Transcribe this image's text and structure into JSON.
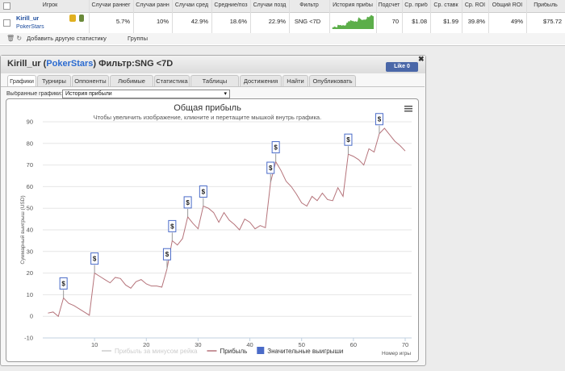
{
  "top_table": {
    "player_header": "Игрок",
    "player": "Kirill_ur",
    "site": "PokerStars",
    "columns": [
      {
        "header": "Случаи раннег",
        "value": "5.7%"
      },
      {
        "header": "Случаи ранн",
        "value": "10%"
      },
      {
        "header": "Случаи сред",
        "value": "42.9%"
      },
      {
        "header": "Средние/поз",
        "value": "18.6%"
      },
      {
        "header": "Случаи позд",
        "value": "22.9%"
      },
      {
        "header": "Фильтр",
        "value": "SNG <7D"
      },
      {
        "header": "История прибы"
      },
      {
        "header": "Подсчет",
        "value": "70"
      },
      {
        "header": "Ср. приб",
        "value": "$1.08"
      },
      {
        "header": "Ср. ставк",
        "value": "$1.99"
      },
      {
        "header": "Ср. ROI",
        "value": "39.8%"
      },
      {
        "header": "Общий ROI",
        "value": "49%"
      },
      {
        "header": "Прибыль",
        "value": "$75.72"
      }
    ],
    "add_stat": "Добавить другую статистику",
    "groups": "Группы"
  },
  "panel": {
    "title_before": "Kirill_ur (",
    "title_link": "PokerStars",
    "title_after": ") Фильтр:SNG <7D",
    "like": "Like 0",
    "tabs": [
      "Графики",
      "Турниры",
      "Оппоненты",
      "Любимые игры",
      "Статистика",
      "Таблицы лидеров",
      "Достижения",
      "Найти",
      "Опубликовать"
    ],
    "active_tab": 0,
    "selector_label": "Выбранные графики:",
    "selector_value": "История прибыли"
  },
  "chart_data": {
    "type": "line",
    "title": "Общая прибыль",
    "subtitle": "Чтобы увеличить изображение, кликните и перетащите мышкой внутрь графика.",
    "y_label": "Суммарный выигрыш (USD)",
    "x_label": "Номер игры",
    "x": [
      1,
      2,
      3,
      4,
      5,
      6,
      7,
      8,
      9,
      10,
      11,
      12,
      13,
      14,
      15,
      16,
      17,
      18,
      19,
      20,
      21,
      22,
      23,
      24,
      25,
      26,
      27,
      28,
      29,
      30,
      31,
      32,
      33,
      34,
      35,
      36,
      37,
      38,
      39,
      40,
      41,
      42,
      43,
      44,
      45,
      46,
      47,
      48,
      49,
      50,
      51,
      52,
      53,
      54,
      55,
      56,
      57,
      58,
      59,
      60,
      61,
      62,
      63,
      64,
      65,
      66,
      67,
      68,
      69,
      70
    ],
    "series": [
      {
        "name": "Прибыль за минусом рейка",
        "color": "#cccccc",
        "visible": false
      },
      {
        "name": "Прибыль",
        "color": "#b5737a",
        "visible": true,
        "values": [
          1.5,
          2,
          0,
          8.5,
          6,
          5,
          3.5,
          2,
          0.5,
          20,
          18.5,
          17,
          15.5,
          18,
          17.5,
          14.5,
          13,
          16,
          17,
          15,
          14,
          14,
          13.5,
          22,
          35,
          33,
          36,
          46,
          43,
          40.5,
          51,
          50,
          48,
          43.5,
          48,
          44.5,
          42.5,
          40,
          45,
          43.5,
          40.5,
          42,
          41,
          62,
          71.5,
          67.5,
          62.5,
          60,
          56.5,
          52.5,
          51,
          55.5,
          53.5,
          57,
          54,
          53.5,
          59.5,
          55.5,
          75,
          74,
          72.5,
          70,
          77.5,
          76,
          84.5,
          87,
          84,
          81,
          79,
          76.5
        ]
      }
    ],
    "flags": {
      "name": "Значительные выигрыши",
      "color": "#4a6bc8",
      "label": "$",
      "x": [
        4,
        10,
        24,
        25,
        28,
        31,
        44,
        45,
        59,
        65
      ]
    },
    "xlim": [
      0,
      70
    ],
    "xticks": [
      10,
      20,
      30,
      40,
      50,
      60,
      70
    ],
    "ylim": [
      -10,
      90
    ],
    "yticks": [
      -10,
      0,
      10,
      20,
      30,
      40,
      50,
      60,
      70,
      80,
      90
    ],
    "grid": true
  }
}
